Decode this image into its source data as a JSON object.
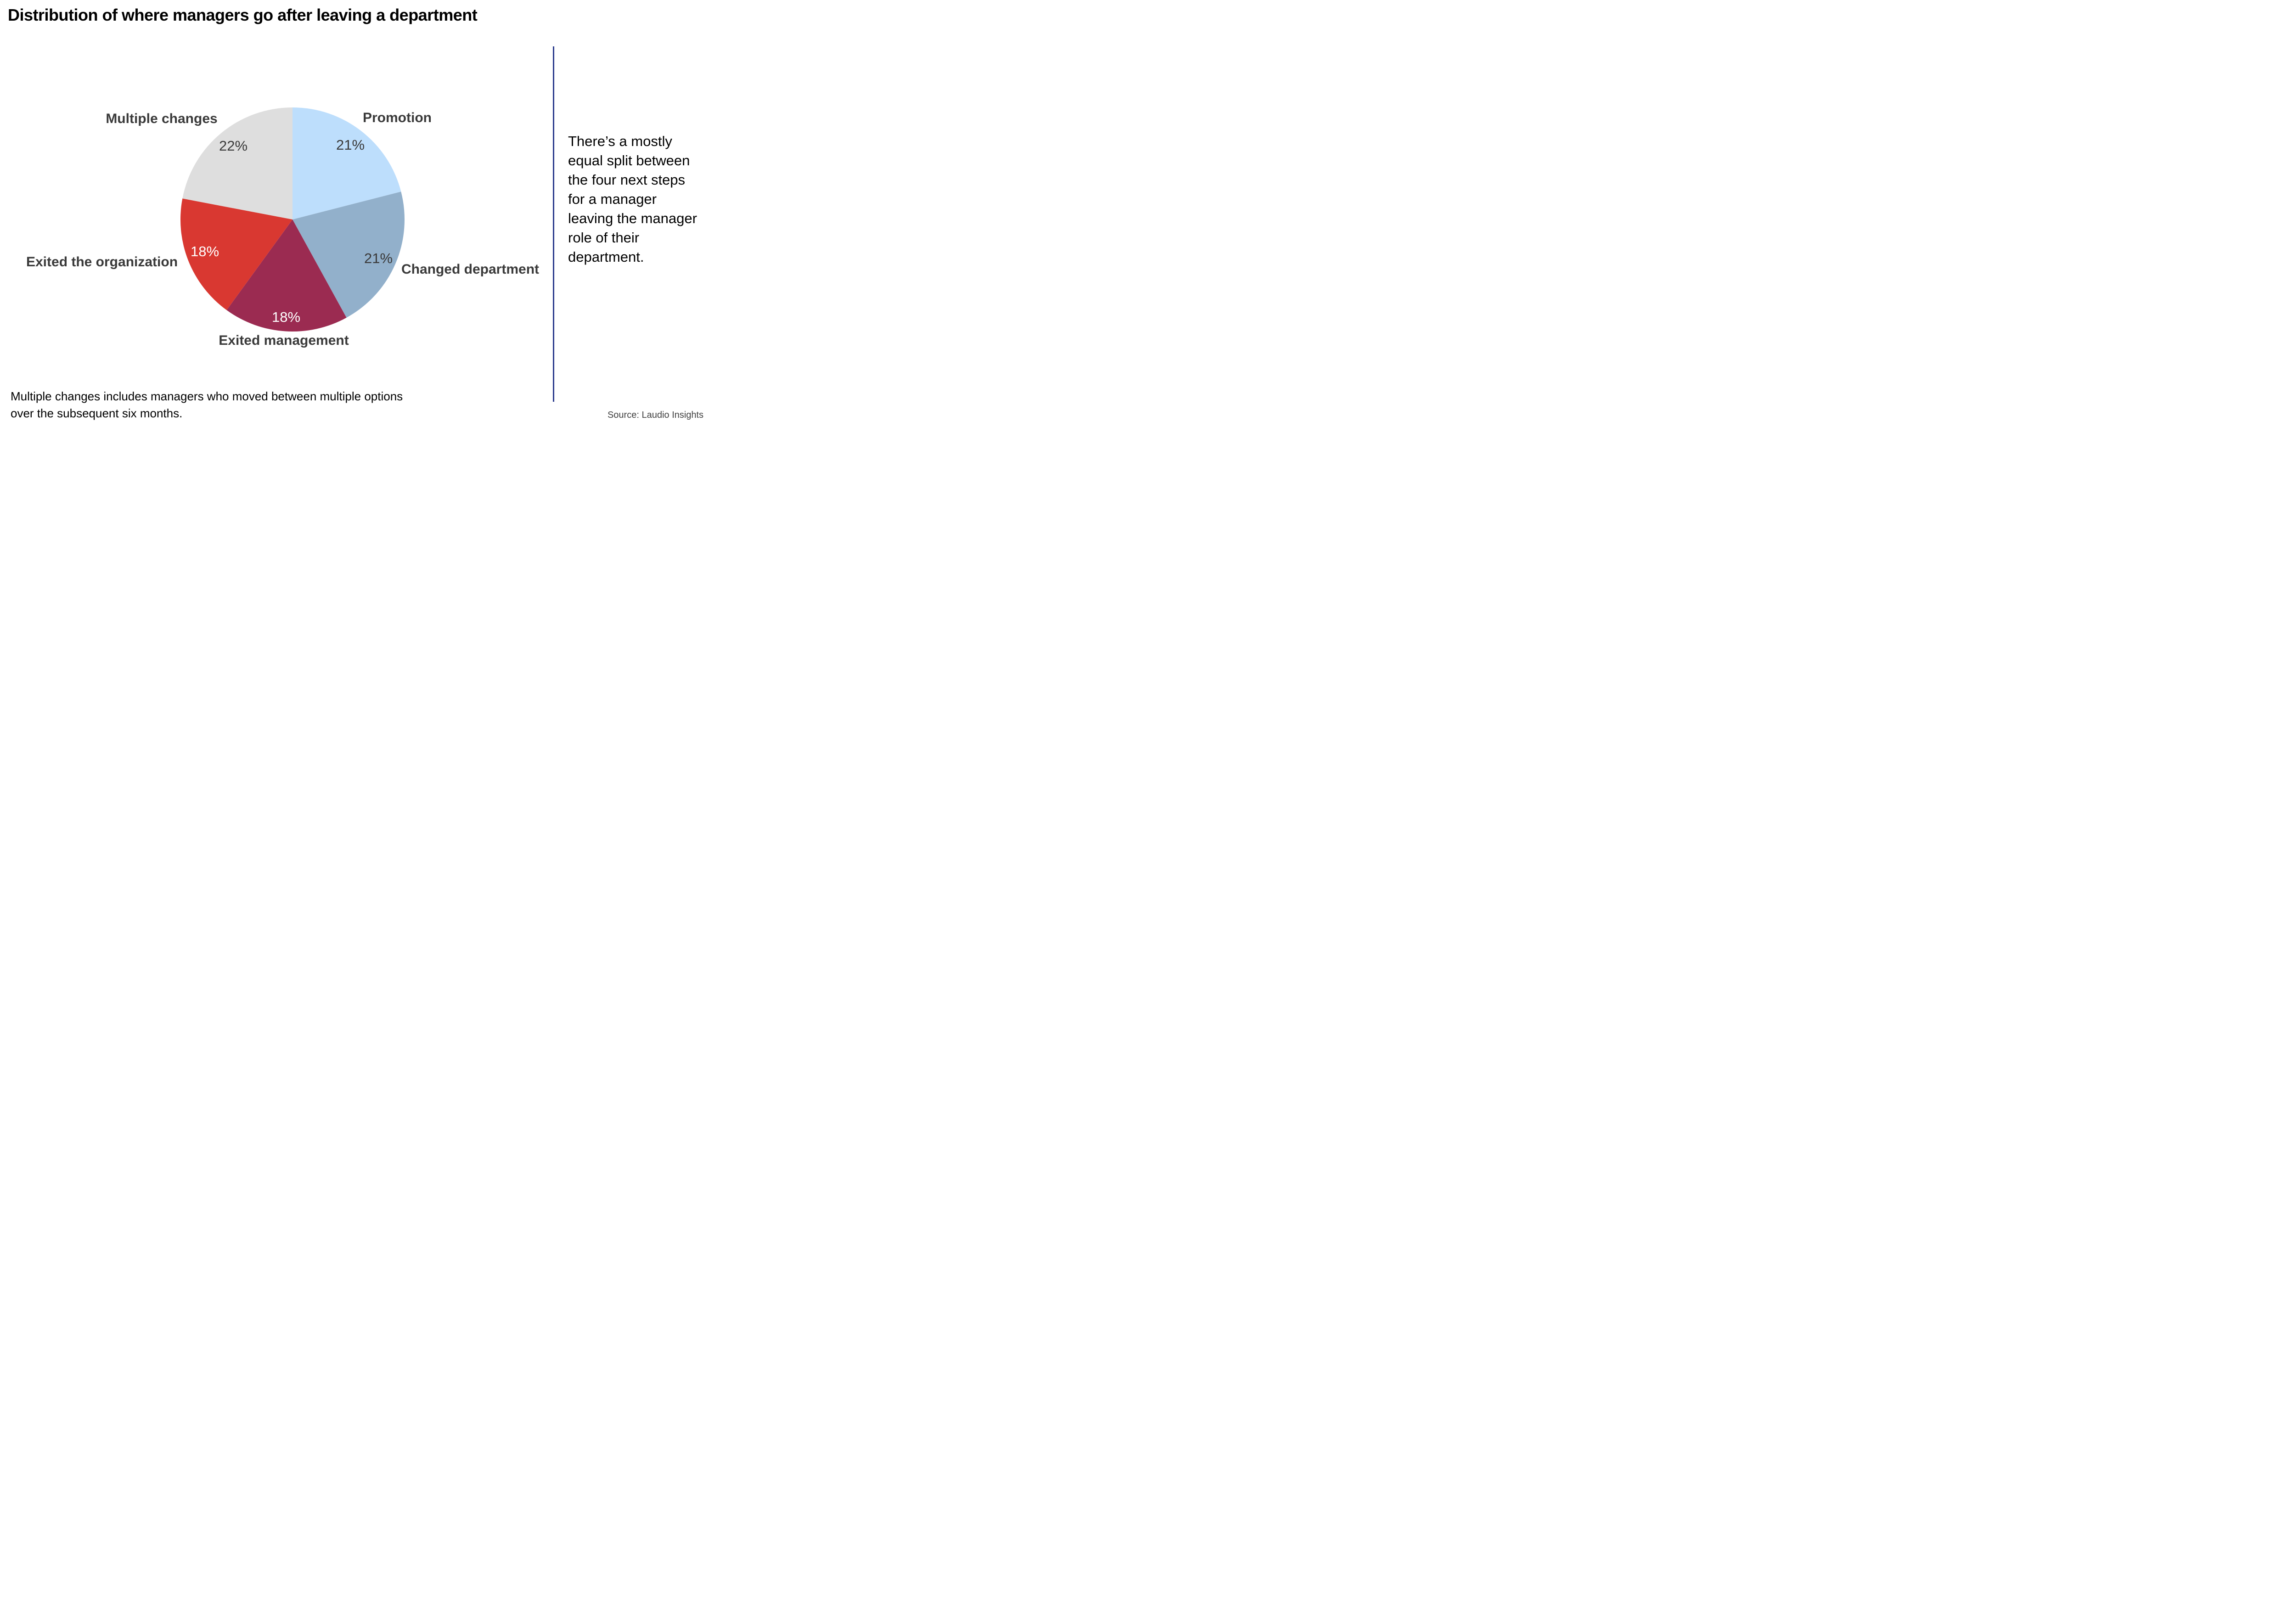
{
  "title": "Distribution of where managers go after leaving a department",
  "insight": "There’s a mostly\nequal split between\nthe four next steps\nfor a manager\nleaving the manager\nrole of their\ndepartment.",
  "footnote": "Multiple changes includes managers who moved between multiple options\nover the subsequent six months.",
  "source": "Source: Laudio Insights",
  "divider_color": "#2a3a8c",
  "chart_data": {
    "type": "pie",
    "title": "Distribution of where managers go after leaving a department",
    "categories": [
      "Promotion",
      "Changed department",
      "Exited management",
      "Exited the organization",
      "Multiple changes"
    ],
    "values": [
      21,
      21,
      18,
      18,
      22
    ],
    "unit": "%",
    "colors": [
      "#bddefc",
      "#92b0cb",
      "#9b2b51",
      "#d93831",
      "#dedede"
    ],
    "value_label_colors": [
      "#3a3a3a",
      "#3a3a3a",
      "#ffffff",
      "#ffffff",
      "#3a3a3a"
    ],
    "start_angle_deg": 0,
    "direction": "clockwise",
    "legend_position": "none",
    "labels_style": "category names outside, percent values inside slices"
  }
}
